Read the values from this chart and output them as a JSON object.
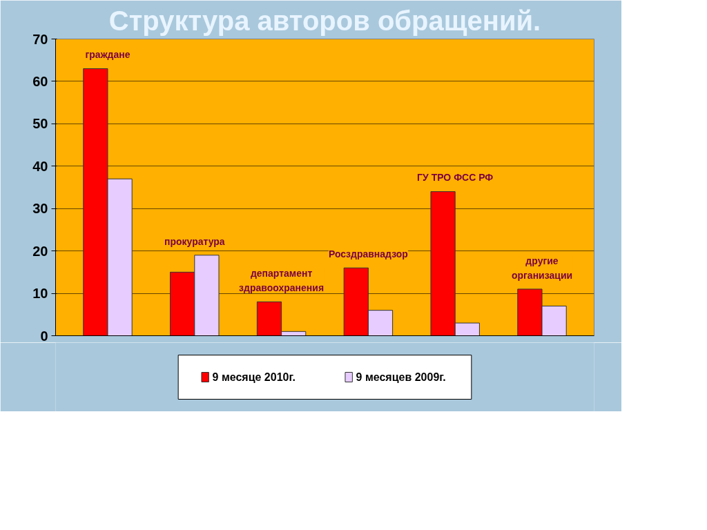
{
  "chart_data": {
    "type": "bar",
    "title": "Структура авторов обращений.",
    "categories": [
      "граждане",
      "прокуратура",
      "департамент\nздравоохранения",
      "Росздравнадзор",
      "ГУ ТРО ФСС РФ",
      "другие\nорганизации"
    ],
    "series": [
      {
        "name": "9 месяце 2010г.",
        "color": "#ff0000",
        "values": [
          63,
          15,
          8,
          16,
          34,
          11
        ]
      },
      {
        "name": "9 месяцев 2009г.",
        "color": "#e6ccff",
        "values": [
          37,
          19,
          1,
          6,
          3,
          7
        ]
      }
    ],
    "ylim": [
      0,
      70
    ],
    "yticks": [
      0,
      10,
      20,
      30,
      40,
      50,
      60,
      70
    ],
    "grid": "y",
    "legend": "bottom",
    "tick_labels": "y"
  }
}
